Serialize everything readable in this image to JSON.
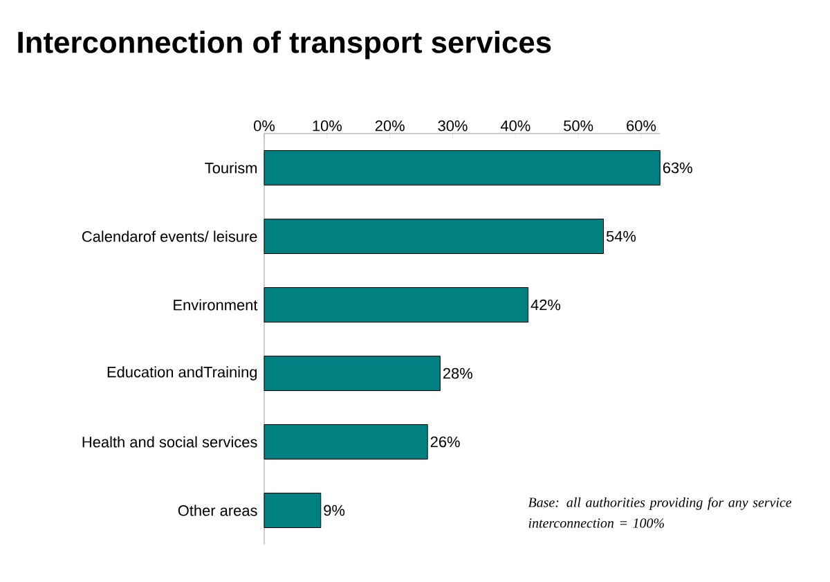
{
  "chart_data": {
    "type": "bar",
    "orientation": "horizontal",
    "title": "Interconnection of transport services",
    "categories": [
      "Tourism",
      "Calendarof events/ leisure",
      "Environment",
      "Education andTraining",
      "Health and social services",
      "Other areas"
    ],
    "values": [
      63,
      54,
      42,
      28,
      26,
      9
    ],
    "value_labels": [
      "63%",
      "54%",
      "42%",
      "28%",
      "26%",
      "9%"
    ],
    "color": "#008080",
    "xlim": [
      0,
      63
    ],
    "xticks": [
      {
        "value": 0,
        "label": "0%"
      },
      {
        "value": 10,
        "label": "10%"
      },
      {
        "value": 20,
        "label": "20%"
      },
      {
        "value": 30,
        "label": "30%"
      },
      {
        "value": 40,
        "label": "40%"
      },
      {
        "value": 50,
        "label": "50%"
      },
      {
        "value": 60,
        "label": "60%"
      }
    ],
    "annotations": [
      "Base: all authorities providing for any service interconnection = 100%"
    ]
  }
}
